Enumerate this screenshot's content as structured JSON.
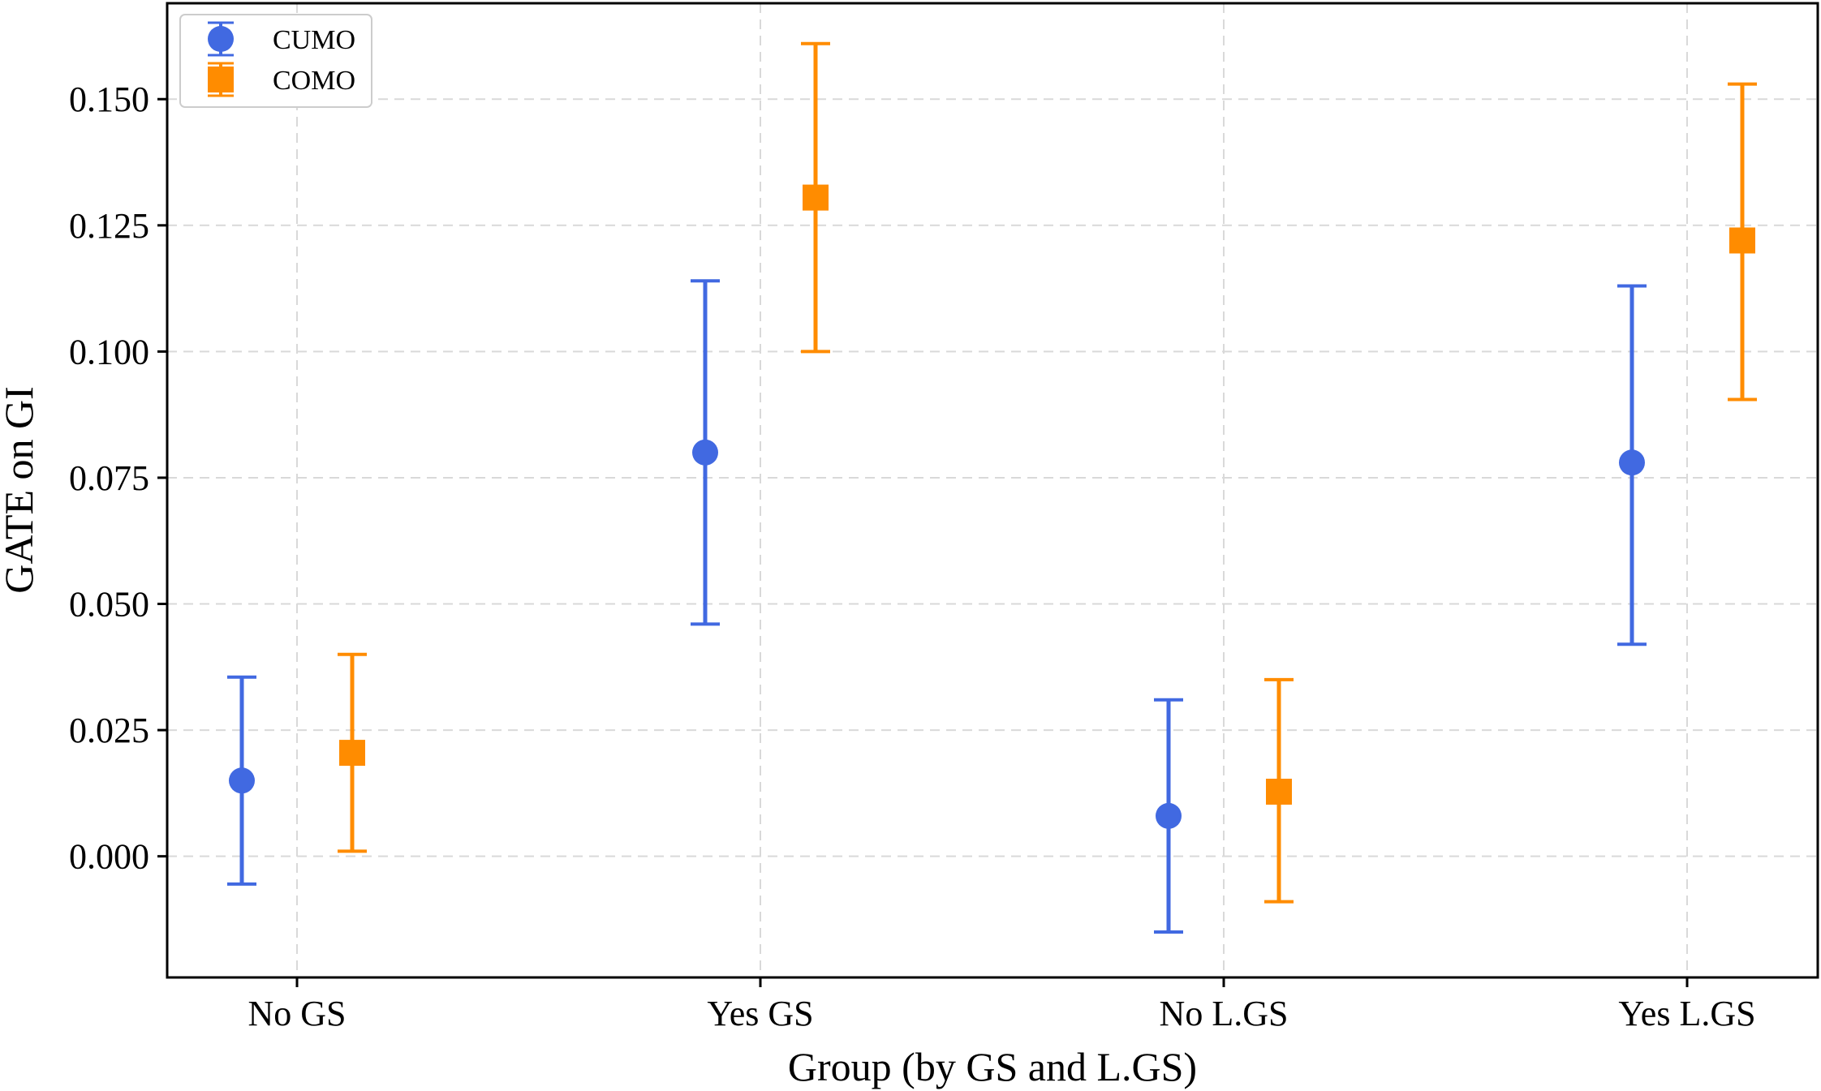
{
  "chart_data": {
    "type": "errorbar",
    "xlabel": "Group (by GS and L.GS)",
    "ylabel": "GATE on GI",
    "categories": [
      "No GS",
      "Yes GS",
      "No L.GS",
      "Yes L.GS"
    ],
    "ylim": [
      -0.024,
      0.169
    ],
    "yticks": [
      "0.000",
      "0.025",
      "0.050",
      "0.075",
      "0.100",
      "0.125",
      "0.150"
    ],
    "ytick_values": [
      0,
      0.025,
      0.05,
      0.075,
      0.1,
      0.125,
      0.15
    ],
    "grid": true,
    "legend_position": "top-left",
    "series": [
      {
        "name": "CUMO",
        "marker": "circle",
        "color": "#4169e1",
        "values": [
          0.015,
          0.08,
          0.008,
          0.078
        ],
        "lower": [
          -0.0055,
          0.046,
          -0.015,
          0.042
        ],
        "upper": [
          0.0355,
          0.114,
          0.031,
          0.113
        ]
      },
      {
        "name": "COMO",
        "marker": "square",
        "color": "#ff8c00",
        "values": [
          0.0205,
          0.1305,
          0.0128,
          0.122
        ],
        "lower": [
          0.001,
          0.1,
          -0.009,
          0.0905
        ],
        "upper": [
          0.04,
          0.161,
          0.035,
          0.153
        ]
      }
    ]
  }
}
